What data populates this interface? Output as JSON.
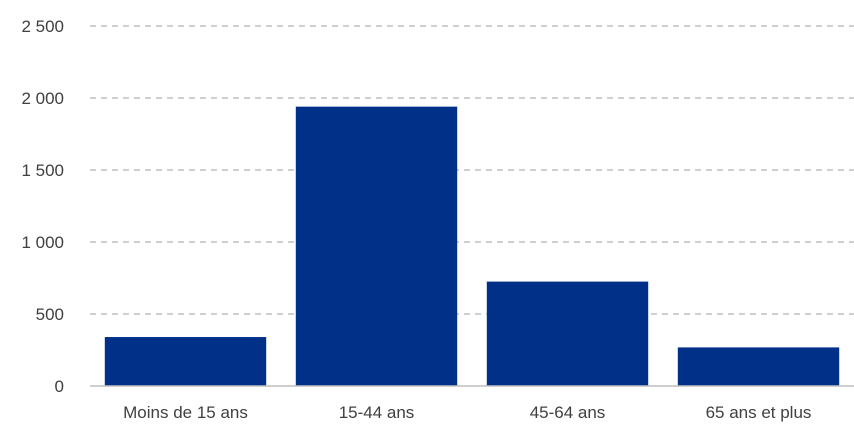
{
  "chart_data": {
    "type": "bar",
    "categories": [
      "Moins de 15 ans",
      "15-44 ans",
      "45-64 ans",
      "65 ans et plus"
    ],
    "values": [
      340,
      1940,
      725,
      268
    ],
    "ylim": [
      0,
      2500
    ],
    "yticks": [
      0,
      500,
      1000,
      1500,
      2000,
      2500
    ],
    "ytick_labels": [
      "0",
      "500",
      "1 000",
      "1 500",
      "2 000",
      "2 500"
    ],
    "grid": true,
    "bar_color": "#003087",
    "title": "",
    "xlabel": "",
    "ylabel": ""
  }
}
